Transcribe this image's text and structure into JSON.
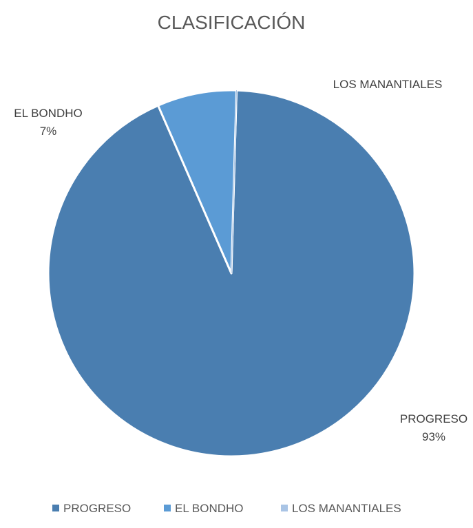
{
  "chart_data": {
    "type": "pie",
    "title": "CLASIFICACIÓN",
    "categories": [
      "PROGRESO",
      "EL BONDHO",
      "LOS MANANTIALES"
    ],
    "values": [
      93,
      7,
      0
    ],
    "data_labels": [
      {
        "name": "PROGRESO",
        "percent": "93%"
      },
      {
        "name": "EL BONDHO",
        "percent": "7%"
      },
      {
        "name": "LOS MANANTIALES",
        "percent": ""
      }
    ],
    "colors": [
      "#4a7eb0",
      "#5b9bd5",
      "#a9c4e5"
    ],
    "legend_position": "bottom"
  }
}
